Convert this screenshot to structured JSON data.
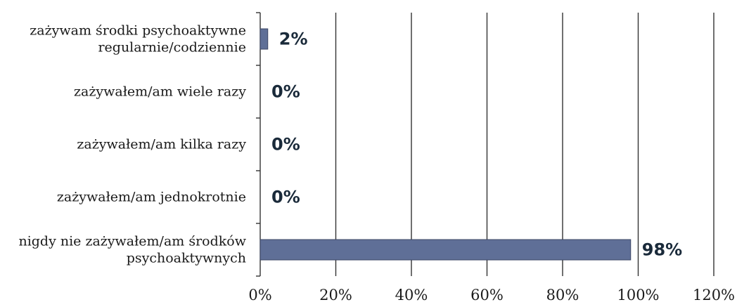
{
  "chart_data": {
    "type": "bar",
    "orientation": "horizontal",
    "title": "",
    "xlabel": "",
    "ylabel": "",
    "xlim": [
      0,
      120
    ],
    "x_ticks": [
      "0%",
      "20%",
      "40%",
      "60%",
      "80%",
      "100%",
      "120%"
    ],
    "x_tick_values": [
      0,
      20,
      40,
      60,
      80,
      100,
      120
    ],
    "grid": "vertical",
    "legend": "none",
    "bar_color": "#5f6f97",
    "categories": [
      [
        "zażywam środki psychoaktywne",
        "regularnie/codziennie"
      ],
      [
        "zażywałem/am wiele razy"
      ],
      [
        "zażywałem/am kilka razy"
      ],
      [
        "zażywałem/am jednokrotnie"
      ],
      [
        "nigdy nie zażywałem/am środków",
        "psychoaktywnych"
      ]
    ],
    "values": [
      2,
      0,
      0,
      0,
      98
    ],
    "data_labels": [
      "2%",
      "0%",
      "0%",
      "0%",
      "98%"
    ]
  }
}
